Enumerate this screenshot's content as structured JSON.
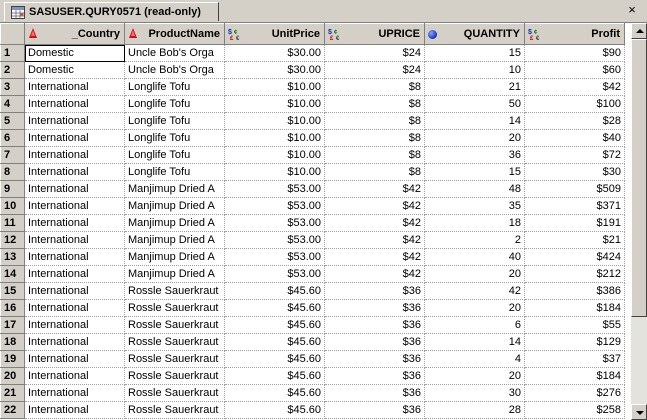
{
  "window": {
    "title": "SASUSER.QURY0571 (read-only)",
    "close_glyph": "×"
  },
  "columns": [
    {
      "name": "_Country",
      "type": "char",
      "icon": "char-triangle-icon"
    },
    {
      "name": "ProductName",
      "type": "char",
      "icon": "char-triangle-icon"
    },
    {
      "name": "UnitPrice",
      "type": "currency",
      "icon": "currency-icon"
    },
    {
      "name": "UPRICE",
      "type": "currency",
      "icon": "currency-icon"
    },
    {
      "name": "QUANTITY",
      "type": "numeric",
      "icon": "numeric-ball-icon"
    },
    {
      "name": "Profit",
      "type": "currency",
      "icon": "currency-icon"
    }
  ],
  "rows": [
    {
      "n": "1",
      "country": "Domestic",
      "product": "Uncle  Bob's Orga",
      "unitprice": "$30.00",
      "uprice": "$24",
      "quantity": "15",
      "profit": "$90"
    },
    {
      "n": "2",
      "country": "Domestic",
      "product": "Uncle  Bob's Orga",
      "unitprice": "$30.00",
      "uprice": "$24",
      "quantity": "10",
      "profit": "$60"
    },
    {
      "n": "3",
      "country": "International",
      "product": "Longlife Tofu",
      "unitprice": "$10.00",
      "uprice": "$8",
      "quantity": "21",
      "profit": "$42"
    },
    {
      "n": "4",
      "country": "International",
      "product": "Longlife Tofu",
      "unitprice": "$10.00",
      "uprice": "$8",
      "quantity": "50",
      "profit": "$100"
    },
    {
      "n": "5",
      "country": "International",
      "product": "Longlife Tofu",
      "unitprice": "$10.00",
      "uprice": "$8",
      "quantity": "14",
      "profit": "$28"
    },
    {
      "n": "6",
      "country": "International",
      "product": "Longlife Tofu",
      "unitprice": "$10.00",
      "uprice": "$8",
      "quantity": "20",
      "profit": "$40"
    },
    {
      "n": "7",
      "country": "International",
      "product": "Longlife Tofu",
      "unitprice": "$10.00",
      "uprice": "$8",
      "quantity": "36",
      "profit": "$72"
    },
    {
      "n": "8",
      "country": "International",
      "product": "Longlife Tofu",
      "unitprice": "$10.00",
      "uprice": "$8",
      "quantity": "15",
      "profit": "$30"
    },
    {
      "n": "9",
      "country": "International",
      "product": "Manjimup  Dried A",
      "unitprice": "$53.00",
      "uprice": "$42",
      "quantity": "48",
      "profit": "$509"
    },
    {
      "n": "10",
      "country": "International",
      "product": "Manjimup  Dried A",
      "unitprice": "$53.00",
      "uprice": "$42",
      "quantity": "35",
      "profit": "$371"
    },
    {
      "n": "11",
      "country": "International",
      "product": "Manjimup  Dried A",
      "unitprice": "$53.00",
      "uprice": "$42",
      "quantity": "18",
      "profit": "$191"
    },
    {
      "n": "12",
      "country": "International",
      "product": "Manjimup  Dried A",
      "unitprice": "$53.00",
      "uprice": "$42",
      "quantity": "2",
      "profit": "$21"
    },
    {
      "n": "13",
      "country": "International",
      "product": "Manjimup  Dried A",
      "unitprice": "$53.00",
      "uprice": "$42",
      "quantity": "40",
      "profit": "$424"
    },
    {
      "n": "14",
      "country": "International",
      "product": "Manjimup  Dried A",
      "unitprice": "$53.00",
      "uprice": "$42",
      "quantity": "20",
      "profit": "$212"
    },
    {
      "n": "15",
      "country": "International",
      "product": "Rossle Sauerkraut",
      "unitprice": "$45.60",
      "uprice": "$36",
      "quantity": "42",
      "profit": "$386"
    },
    {
      "n": "16",
      "country": "International",
      "product": "Rossle Sauerkraut",
      "unitprice": "$45.60",
      "uprice": "$36",
      "quantity": "20",
      "profit": "$184"
    },
    {
      "n": "17",
      "country": "International",
      "product": "Rossle Sauerkraut",
      "unitprice": "$45.60",
      "uprice": "$36",
      "quantity": "6",
      "profit": "$55"
    },
    {
      "n": "18",
      "country": "International",
      "product": "Rossle Sauerkraut",
      "unitprice": "$45.60",
      "uprice": "$36",
      "quantity": "14",
      "profit": "$129"
    },
    {
      "n": "19",
      "country": "International",
      "product": "Rossle Sauerkraut",
      "unitprice": "$45.60",
      "uprice": "$36",
      "quantity": "4",
      "profit": "$37"
    },
    {
      "n": "20",
      "country": "International",
      "product": "Rossle Sauerkraut",
      "unitprice": "$45.60",
      "uprice": "$36",
      "quantity": "20",
      "profit": "$184"
    },
    {
      "n": "21",
      "country": "International",
      "product": "Rossle Sauerkraut",
      "unitprice": "$45.60",
      "uprice": "$36",
      "quantity": "30",
      "profit": "$276"
    },
    {
      "n": "22",
      "country": "International",
      "product": "Rossle Sauerkraut",
      "unitprice": "$45.60",
      "uprice": "$36",
      "quantity": "28",
      "profit": "$258"
    }
  ],
  "colors": {
    "chrome": "#d4d0c8",
    "grid_bg": "#ffffff",
    "char_icon": "#d01010",
    "numeric_icon": "#1030c0"
  }
}
